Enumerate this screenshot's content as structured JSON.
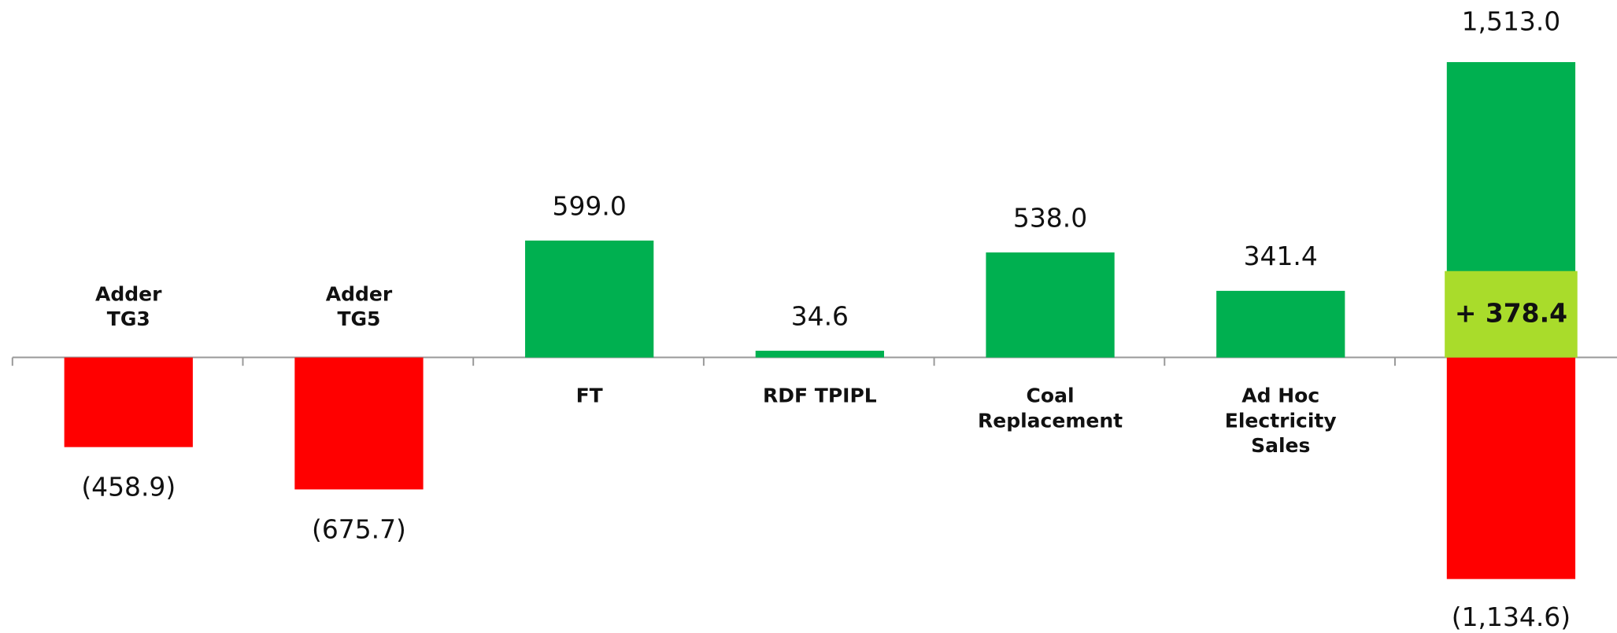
{
  "chart_data": {
    "type": "bar",
    "categories": [
      [
        "Adder",
        "TG3"
      ],
      [
        "Adder",
        "TG5"
      ],
      [
        "FT"
      ],
      [
        "RDF TPIPL"
      ],
      [
        "Coal",
        "Replacement"
      ],
      [
        "Ad Hoc",
        "Electricity",
        "Sales"
      ]
    ],
    "values": [
      -458.9,
      -675.7,
      599.0,
      34.6,
      538.0,
      341.4
    ],
    "value_labels": [
      "(458.9)",
      "(675.7)",
      "599.0",
      "34.6",
      "538.0",
      "341.4"
    ],
    "positive_color": "#00b050",
    "negative_color": "#ff0000",
    "total": {
      "positive": 1513.0,
      "positive_label": "1,513.0",
      "negative": -1134.6,
      "negative_label": "(1,134.6)",
      "net": 378.4,
      "net_label": "+ 378.4",
      "net_color": "#a9dc2b"
    },
    "ylim": [
      -1410,
      1830
    ]
  }
}
